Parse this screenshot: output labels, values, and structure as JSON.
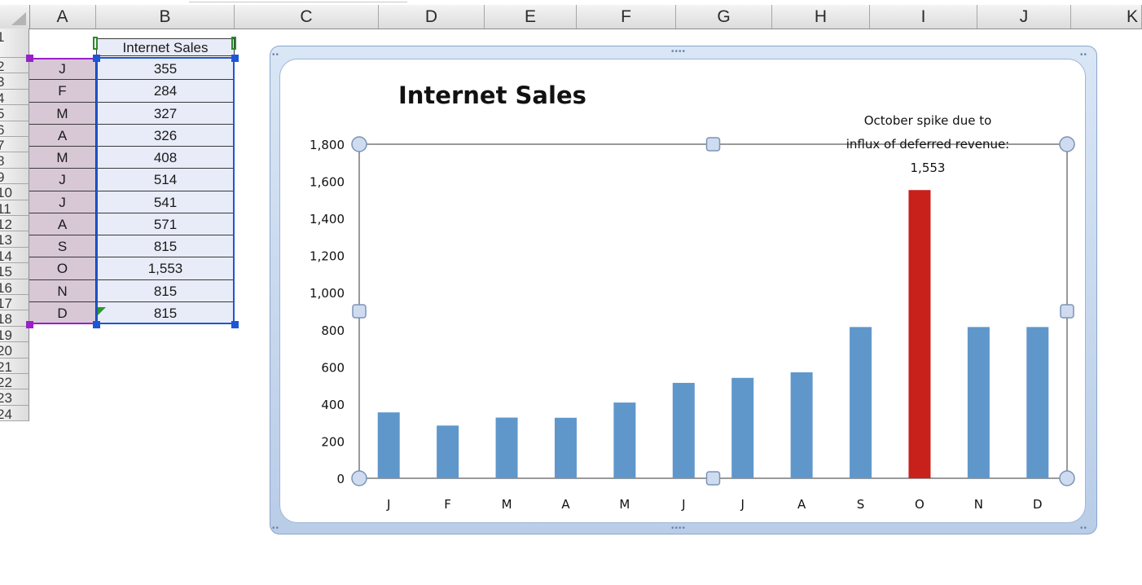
{
  "spreadsheet": {
    "column_headers": [
      "A",
      "B",
      "C",
      "D",
      "E",
      "F",
      "G",
      "H",
      "I",
      "J",
      "K"
    ],
    "row_headers": [
      "1",
      "2",
      "3",
      "4",
      "5",
      "6",
      "7",
      "8",
      "9",
      "10",
      "11",
      "12",
      "13",
      "14",
      "15",
      "16",
      "17",
      "18",
      "19",
      "20",
      "21",
      "22",
      "23",
      "24"
    ],
    "header_cell_b1": "Internet Sales",
    "months": [
      "J",
      "F",
      "M",
      "A",
      "M",
      "J",
      "J",
      "A",
      "S",
      "O",
      "N",
      "D"
    ],
    "sales": [
      "355",
      "284",
      "327",
      "326",
      "408",
      "514",
      "541",
      "571",
      "815",
      "1,553",
      "815",
      "815"
    ]
  },
  "chart_data": {
    "type": "bar",
    "title": "Internet Sales",
    "categories": [
      "J",
      "F",
      "M",
      "A",
      "M",
      "J",
      "J",
      "A",
      "S",
      "O",
      "N",
      "D"
    ],
    "values": [
      355,
      284,
      327,
      326,
      408,
      514,
      541,
      571,
      815,
      1553,
      815,
      815
    ],
    "ylim": [
      0,
      1800
    ],
    "y_ticks": [
      0,
      200,
      400,
      600,
      800,
      1000,
      1200,
      1400,
      1600,
      1800
    ],
    "y_tick_labels": [
      "0",
      "200",
      "400",
      "600",
      "800",
      "1,000",
      "1,200",
      "1,400",
      "1,600",
      "1,800"
    ],
    "highlight_index": 9,
    "colors": {
      "bar": "#5f97cb",
      "highlight": "#c8201a"
    },
    "annotation": {
      "lines": [
        "October spike due to",
        "influx of deferred revenue:",
        "1,553"
      ]
    },
    "grid": false,
    "legend": "none"
  }
}
